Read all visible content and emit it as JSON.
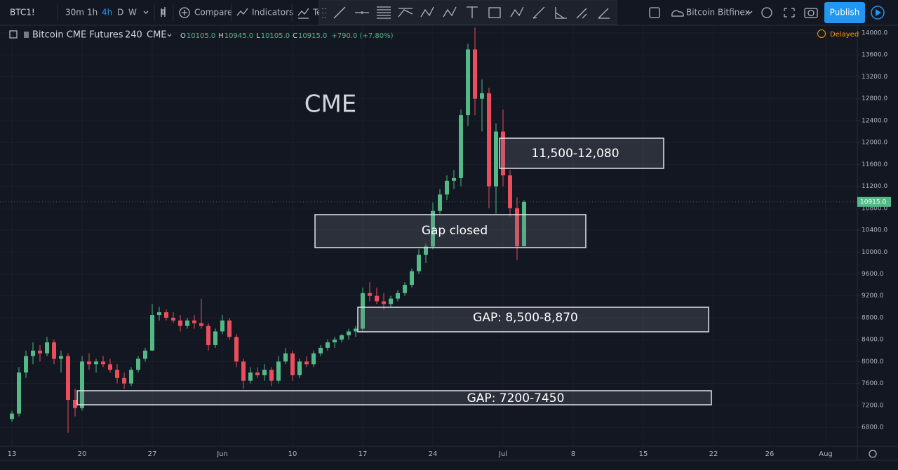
{
  "toolbar": {
    "symbol": "BTC1!",
    "intervals": [
      "30m",
      "1h",
      "4h",
      "D",
      "W"
    ],
    "compare": "Compare",
    "indicators": "Indicators",
    "templates": "Te",
    "layout_name": "Bitcoin Bitfinex",
    "publish": "Publish"
  },
  "legend": {
    "name": "Bitcoin CME Futures",
    "interval": "240",
    "exchange": "CME",
    "ohlc": [
      {
        "key": "O",
        "value": "10105.0"
      },
      {
        "key": "H",
        "value": "10945.0"
      },
      {
        "key": "L",
        "value": "10105.0"
      },
      {
        "key": "C",
        "value": "10915.0"
      }
    ],
    "change": "+790.0 (+7.80%)",
    "status": "Delayed"
  },
  "chart_data": {
    "type": "candlestick",
    "x": [
      0,
      0.5,
      1,
      1.5,
      2,
      2.5,
      3,
      3.5,
      4,
      4.5,
      5,
      5.5,
      6,
      6.5,
      7,
      7.5,
      8,
      8.5,
      9,
      9.5,
      10,
      10.5,
      11,
      11.5,
      12,
      12.5,
      13,
      13.5,
      14,
      14.5,
      15,
      15.5,
      16,
      16.5,
      17,
      17.5,
      18,
      18.5,
      19,
      19.5,
      20,
      20.5,
      21,
      21.5,
      22,
      22.5,
      23,
      23.5,
      24,
      24.5,
      25,
      25.5,
      26,
      26.5,
      27,
      27.5,
      28,
      28.5,
      29,
      29.5,
      30,
      30.5,
      31,
      31.5,
      32,
      32.5,
      33,
      33.5,
      34,
      34.5,
      35,
      35.5,
      36,
      36.5
    ],
    "open": [
      6950,
      7050,
      7800,
      8100,
      8200,
      8150,
      8350,
      8050,
      8100,
      7300,
      7150,
      8000,
      7950,
      8000,
      7950,
      7850,
      7700,
      7600,
      7850,
      8050,
      8200,
      8850,
      8900,
      8800,
      8750,
      8650,
      8750,
      8700,
      8650,
      8300,
      8550,
      8750,
      8450,
      8000,
      7650,
      7800,
      7750,
      7850,
      7650,
      8000,
      8150,
      7750,
      8000,
      7950,
      8150,
      8250,
      8350,
      8400,
      8480,
      8550,
      8600,
      9250,
      9200,
      9100,
      9050,
      9150,
      9250,
      9400,
      9650,
      9950,
      10100,
      10750,
      11050,
      11300,
      11350,
      12500,
      13700,
      12800,
      12900,
      11200,
      12200,
      11400,
      10800,
      10105
    ],
    "high": [
      7100,
      7900,
      8200,
      8350,
      8300,
      8450,
      8400,
      8200,
      8150,
      7500,
      8100,
      8150,
      8050,
      8100,
      8050,
      7950,
      7800,
      7900,
      8100,
      8250,
      9050,
      9000,
      8950,
      8900,
      8850,
      8800,
      8850,
      9150,
      8700,
      8600,
      8850,
      8800,
      8500,
      8050,
      7900,
      7900,
      7950,
      7900,
      8100,
      8250,
      8200,
      8050,
      8100,
      8200,
      8300,
      8400,
      8450,
      8500,
      8600,
      8650,
      9350,
      9450,
      9350,
      9250,
      9200,
      9300,
      9450,
      9700,
      10050,
      10150,
      10900,
      11150,
      11400,
      11500,
      12600,
      13800,
      14100,
      13150,
      13000,
      12350,
      12600,
      11500,
      11000,
      10945
    ],
    "low": [
      6900,
      7000,
      7700,
      7950,
      8000,
      8100,
      7950,
      7800,
      6700,
      7000,
      7100,
      7850,
      7800,
      7900,
      7800,
      7600,
      7500,
      7550,
      7800,
      8000,
      8200,
      8750,
      8750,
      8700,
      8550,
      8600,
      8600,
      8600,
      8200,
      8250,
      8500,
      8400,
      7900,
      7500,
      7600,
      7700,
      7650,
      7550,
      7600,
      7950,
      7650,
      7700,
      7900,
      7900,
      8100,
      8200,
      8250,
      8350,
      8400,
      8450,
      8550,
      9100,
      9050,
      8950,
      9000,
      9100,
      9200,
      9350,
      9600,
      9800,
      10050,
      10700,
      10950,
      11150,
      11200,
      12300,
      12500,
      12200,
      10800,
      10700,
      11200,
      10650,
      9850,
      10105
    ],
    "close": [
      7050,
      7800,
      8100,
      8200,
      8150,
      8350,
      8050,
      8100,
      7300,
      7150,
      8000,
      7950,
      8000,
      7950,
      7850,
      7700,
      7600,
      7850,
      8050,
      8200,
      8850,
      8900,
      8800,
      8750,
      8650,
      8750,
      8700,
      8650,
      8300,
      8550,
      8750,
      8450,
      8000,
      7650,
      7800,
      7750,
      7850,
      7650,
      8000,
      8150,
      7750,
      8000,
      7950,
      8150,
      8250,
      8350,
      8400,
      8480,
      8550,
      8600,
      9250,
      9200,
      9100,
      9050,
      9150,
      9250,
      9400,
      9650,
      9950,
      10100,
      10750,
      11050,
      11300,
      11350,
      12500,
      13700,
      12800,
      12900,
      11200,
      12200,
      11400,
      10800,
      10105,
      10915
    ],
    "up_color": "#53b987",
    "down_color": "#eb4d5c",
    "xlim": [
      -0.85,
      60.25
    ],
    "ylim": [
      6455,
      14141
    ],
    "xticks": [
      {
        "value": 0,
        "label": "13"
      },
      {
        "value": 5,
        "label": "20"
      },
      {
        "value": 10,
        "label": "27"
      },
      {
        "value": 15,
        "label": "Jun"
      },
      {
        "value": 20,
        "label": "10"
      },
      {
        "value": 25,
        "label": "17"
      },
      {
        "value": 30,
        "label": "24"
      },
      {
        "value": 35,
        "label": "Jul"
      },
      {
        "value": 40,
        "label": "8"
      },
      {
        "value": 45,
        "label": "15"
      },
      {
        "value": 50,
        "label": "22"
      },
      {
        "value": 54,
        "label": "26"
      },
      {
        "value": 58,
        "label": "Aug"
      }
    ],
    "yticks": [
      {
        "value": 6800,
        "label": "6800.0"
      },
      {
        "value": 7200,
        "label": "7200.0"
      },
      {
        "value": 7600,
        "label": "7600.0"
      },
      {
        "value": 8000,
        "label": "8000.0"
      },
      {
        "value": 8400,
        "label": "8400.0"
      },
      {
        "value": 8800,
        "label": "8800.0"
      },
      {
        "value": 9200,
        "label": "9200.0"
      },
      {
        "value": 9600,
        "label": "9600.0"
      },
      {
        "value": 10000,
        "label": "10000.0"
      },
      {
        "value": 10400,
        "label": "10400.0"
      },
      {
        "value": 10800,
        "label": "10800.0"
      },
      {
        "value": 11200,
        "label": "11200.0"
      },
      {
        "value": 11600,
        "label": "11600.0"
      },
      {
        "value": 12000,
        "label": "12000.0"
      },
      {
        "value": 12400,
        "label": "12400.0"
      },
      {
        "value": 12800,
        "label": "12800.0"
      },
      {
        "value": 13200,
        "label": "13200.0"
      },
      {
        "value": 13600,
        "label": "13600.0"
      },
      {
        "value": 14000,
        "label": "14000.0"
      }
    ],
    "grid": true,
    "last_price_label": "10915.0",
    "annotations": [
      "CME",
      "11,500-12,080",
      "Gap closed",
      "GAP: 8,500-8,870",
      "GAP: 7200-7450"
    ]
  }
}
